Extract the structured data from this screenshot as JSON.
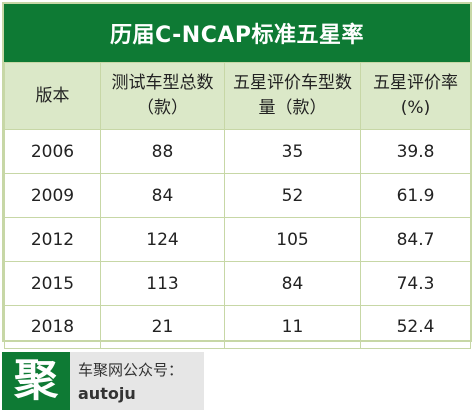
{
  "table": {
    "title": "历届C-NCAP标准五星率",
    "headers": [
      "版本",
      "测试车型总数（款）",
      "五星评价车型数量（款）",
      "五星评价率(%)"
    ],
    "rows": [
      [
        "2006",
        "88",
        "35",
        "39.8"
      ],
      [
        "2009",
        "84",
        "52",
        "61.9"
      ],
      [
        "2012",
        "124",
        "105",
        "84.7"
      ],
      [
        "2015",
        "113",
        "84",
        "74.3"
      ],
      [
        "2018",
        "21",
        "11",
        "52.4"
      ]
    ]
  },
  "footer": {
    "logo_char": "聚",
    "wechat_label": "车聚网公众号：",
    "wechat_id": "autoju"
  },
  "colors": {
    "title_bg": "#0e7a34",
    "header_bg": "#dbe8c8",
    "border": "#c7d7a6"
  }
}
